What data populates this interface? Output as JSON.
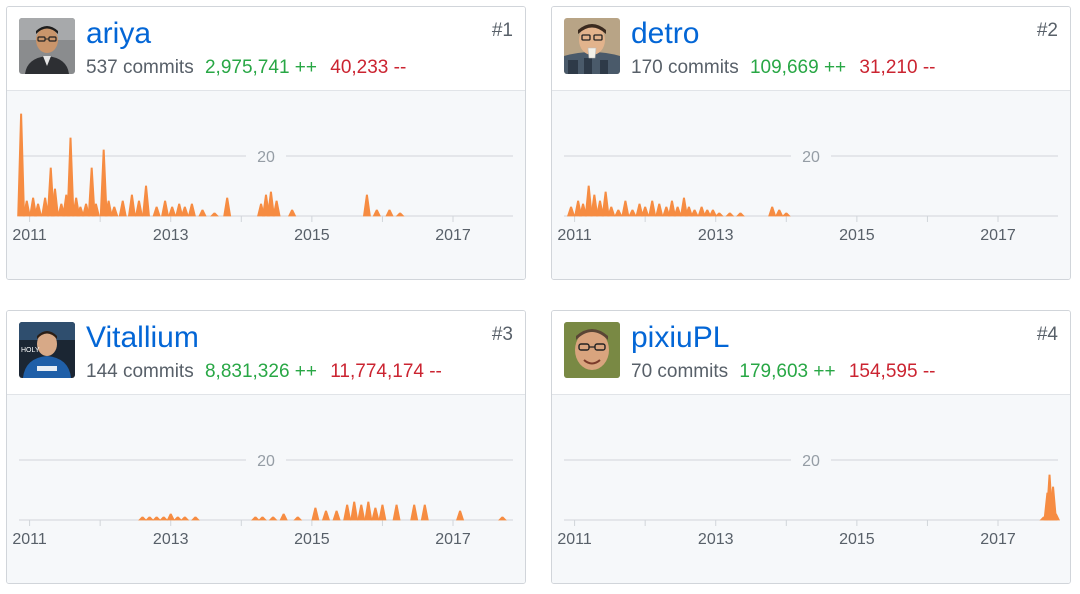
{
  "accent": "#0366d6",
  "add_color": "#28a745",
  "del_color": "#cb2431",
  "area_color": "#f68c42",
  "contributors": [
    {
      "username": "ariya",
      "rank": "#1",
      "commits": "537 commits",
      "additions": "2,975,741 ++",
      "deletions": "40,233 --",
      "avatar_icon": "person-glasses-avatar",
      "chart_data": {
        "type": "area",
        "title": "",
        "xlabel": "",
        "ylabel": "",
        "grid_label": "20",
        "grid_value": 20,
        "ylim": [
          0,
          35
        ],
        "xlim": [
          2010.85,
          2017.85
        ],
        "x_ticks": [
          2011,
          2012,
          2013,
          2014,
          2015,
          2016,
          2017
        ],
        "x_tick_labels": [
          "2011",
          "2013",
          "2015",
          "2017"
        ],
        "x_tick_label_years": [
          2011,
          2013,
          2015,
          2017
        ],
        "points": [
          [
            2010.88,
            34
          ],
          [
            2010.96,
            5
          ],
          [
            2011.05,
            6
          ],
          [
            2011.12,
            4
          ],
          [
            2011.22,
            6
          ],
          [
            2011.3,
            16
          ],
          [
            2011.36,
            9
          ],
          [
            2011.45,
            4
          ],
          [
            2011.52,
            7
          ],
          [
            2011.58,
            26
          ],
          [
            2011.66,
            6
          ],
          [
            2011.72,
            3
          ],
          [
            2011.8,
            4
          ],
          [
            2011.88,
            16
          ],
          [
            2011.94,
            4
          ],
          [
            2012.05,
            22
          ],
          [
            2012.12,
            5
          ],
          [
            2012.2,
            3
          ],
          [
            2012.32,
            5
          ],
          [
            2012.45,
            7
          ],
          [
            2012.55,
            5
          ],
          [
            2012.65,
            10
          ],
          [
            2012.8,
            3
          ],
          [
            2012.92,
            5
          ],
          [
            2013.02,
            3
          ],
          [
            2013.12,
            4
          ],
          [
            2013.2,
            3
          ],
          [
            2013.3,
            4
          ],
          [
            2013.45,
            2
          ],
          [
            2013.62,
            1
          ],
          [
            2013.8,
            6
          ],
          [
            2014.28,
            4
          ],
          [
            2014.35,
            7
          ],
          [
            2014.42,
            8
          ],
          [
            2014.5,
            5
          ],
          [
            2014.72,
            2
          ],
          [
            2015.78,
            7
          ],
          [
            2015.92,
            2
          ],
          [
            2016.1,
            2
          ],
          [
            2016.25,
            1
          ]
        ]
      }
    },
    {
      "username": "detro",
      "rank": "#2",
      "commits": "170 commits",
      "additions": "109,669 ++",
      "deletions": "31,210 --",
      "avatar_icon": "person-drinking-avatar",
      "chart_data": {
        "type": "area",
        "title": "",
        "xlabel": "",
        "ylabel": "",
        "grid_label": "20",
        "grid_value": 20,
        "ylim": [
          0,
          35
        ],
        "xlim": [
          2010.85,
          2017.85
        ],
        "x_ticks": [
          2011,
          2012,
          2013,
          2014,
          2015,
          2016,
          2017
        ],
        "x_tick_labels": [
          "2011",
          "2013",
          "2015",
          "2017"
        ],
        "x_tick_label_years": [
          2011,
          2013,
          2015,
          2017
        ],
        "points": [
          [
            2010.95,
            3
          ],
          [
            2011.05,
            5
          ],
          [
            2011.12,
            4
          ],
          [
            2011.2,
            10
          ],
          [
            2011.28,
            7
          ],
          [
            2011.36,
            5
          ],
          [
            2011.44,
            8
          ],
          [
            2011.52,
            3
          ],
          [
            2011.62,
            2
          ],
          [
            2011.72,
            5
          ],
          [
            2011.82,
            2
          ],
          [
            2011.92,
            4
          ],
          [
            2012.0,
            3
          ],
          [
            2012.1,
            5
          ],
          [
            2012.2,
            4
          ],
          [
            2012.3,
            3
          ],
          [
            2012.38,
            5
          ],
          [
            2012.46,
            3
          ],
          [
            2012.55,
            6
          ],
          [
            2012.62,
            3
          ],
          [
            2012.7,
            2
          ],
          [
            2012.8,
            3
          ],
          [
            2012.88,
            2
          ],
          [
            2012.96,
            2
          ],
          [
            2013.05,
            1
          ],
          [
            2013.2,
            1
          ],
          [
            2013.35,
            1
          ],
          [
            2013.8,
            3
          ],
          [
            2013.9,
            2
          ],
          [
            2014.0,
            1
          ]
        ]
      }
    },
    {
      "username": "Vitallium",
      "rank": "#3",
      "commits": "144 commits",
      "additions": "8,831,326 ++",
      "deletions": "11,774,174 --",
      "avatar_icon": "person-hoodie-avatar",
      "chart_data": {
        "type": "area",
        "title": "",
        "xlabel": "",
        "ylabel": "",
        "grid_label": "20",
        "grid_value": 20,
        "ylim": [
          0,
          35
        ],
        "xlim": [
          2010.85,
          2017.85
        ],
        "x_ticks": [
          2011,
          2012,
          2013,
          2014,
          2015,
          2016,
          2017
        ],
        "x_tick_labels": [
          "2011",
          "2013",
          "2015",
          "2017"
        ],
        "x_tick_label_years": [
          2011,
          2013,
          2015,
          2017
        ],
        "points": [
          [
            2012.6,
            1
          ],
          [
            2012.7,
            1
          ],
          [
            2012.8,
            1
          ],
          [
            2012.9,
            1
          ],
          [
            2013.0,
            2
          ],
          [
            2013.1,
            1
          ],
          [
            2013.2,
            1
          ],
          [
            2013.35,
            1
          ],
          [
            2014.2,
            1
          ],
          [
            2014.3,
            1
          ],
          [
            2014.45,
            1
          ],
          [
            2014.6,
            2
          ],
          [
            2014.8,
            1
          ],
          [
            2015.05,
            4
          ],
          [
            2015.2,
            3
          ],
          [
            2015.35,
            3
          ],
          [
            2015.5,
            5
          ],
          [
            2015.6,
            6
          ],
          [
            2015.7,
            5
          ],
          [
            2015.8,
            6
          ],
          [
            2015.9,
            4
          ],
          [
            2016.0,
            5
          ],
          [
            2016.2,
            5
          ],
          [
            2016.45,
            5
          ],
          [
            2016.6,
            5
          ],
          [
            2017.1,
            3
          ],
          [
            2017.7,
            1
          ]
        ]
      }
    },
    {
      "username": "pixiuPL",
      "rank": "#4",
      "commits": "70 commits",
      "additions": "179,603 ++",
      "deletions": "154,595 --",
      "avatar_icon": "person-smiling-avatar",
      "chart_data": {
        "type": "area",
        "title": "",
        "xlabel": "",
        "ylabel": "",
        "grid_label": "20",
        "grid_value": 20,
        "ylim": [
          0,
          35
        ],
        "xlim": [
          2010.85,
          2017.85
        ],
        "x_ticks": [
          2011,
          2012,
          2013,
          2014,
          2015,
          2016,
          2017
        ],
        "x_tick_labels": [
          "2011",
          "2013",
          "2015",
          "2017"
        ],
        "x_tick_label_years": [
          2011,
          2013,
          2015,
          2017
        ],
        "points": [
          [
            2017.65,
            1
          ],
          [
            2017.7,
            9
          ],
          [
            2017.73,
            15
          ],
          [
            2017.78,
            11
          ],
          [
            2017.82,
            2
          ]
        ]
      }
    }
  ]
}
